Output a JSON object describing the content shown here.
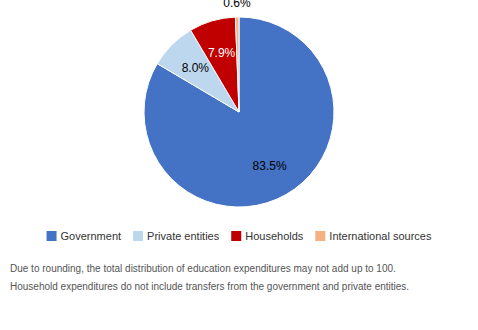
{
  "chart_data": {
    "type": "pie",
    "categories": [
      "Government",
      "Private entities",
      "Households",
      "International sources"
    ],
    "values": [
      83.5,
      8.0,
      7.9,
      0.6
    ],
    "value_labels": [
      "83.5%",
      "8.0%",
      "7.9%",
      "0.6%"
    ],
    "colors": [
      "#4472C4",
      "#BDD7EE",
      "#C00000",
      "#F4B183"
    ],
    "data_labels": true,
    "legend": "bottom",
    "annotations": [
      "Due to rounding, the total distribution of education expenditures may not add up to 100.",
      "Household expenditures do not include transfers from the government and private entities."
    ]
  }
}
